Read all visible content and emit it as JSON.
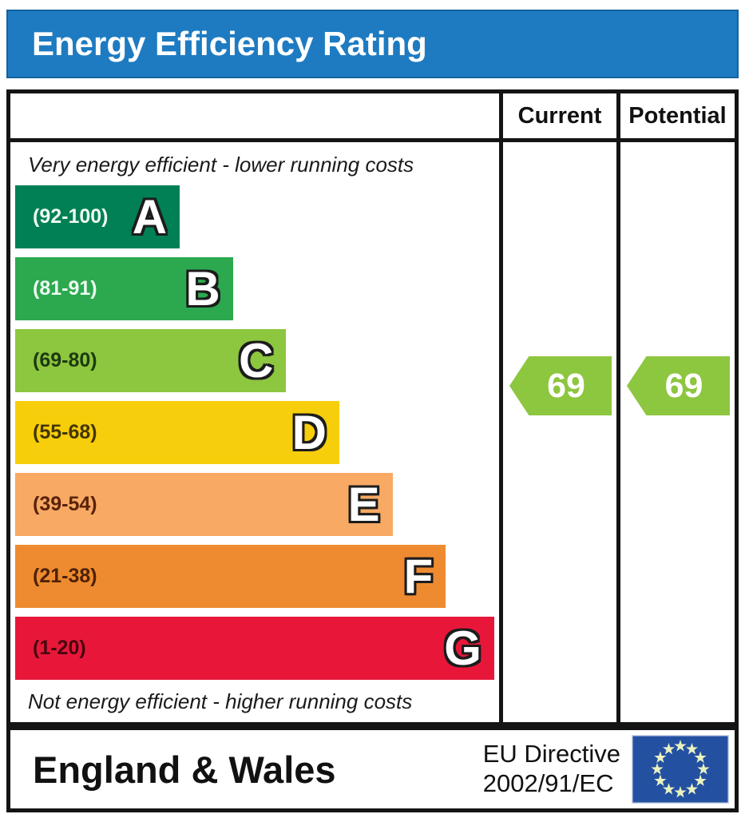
{
  "title": "Energy Efficiency Rating",
  "columns": {
    "current": "Current",
    "potential": "Potential"
  },
  "top_note": "Very energy efficient - lower running costs",
  "bottom_note": "Not energy efficient - higher running costs",
  "bands": [
    {
      "letter": "A",
      "range": "(92-100)",
      "color": "#008054",
      "label_color": "#eef9f1",
      "width_pct": 34
    },
    {
      "letter": "B",
      "range": "(81-91)",
      "color": "#2ca94f",
      "label_color": "#eef9f1",
      "width_pct": 45
    },
    {
      "letter": "C",
      "range": "(69-80)",
      "color": "#8dc63f",
      "label_color": "#1d3a10",
      "width_pct": 56
    },
    {
      "letter": "D",
      "range": "(55-68)",
      "color": "#f7ce0b",
      "label_color": "#433603",
      "width_pct": 67
    },
    {
      "letter": "E",
      "range": "(39-54)",
      "color": "#f8a963",
      "label_color": "#59230a",
      "width_pct": 78
    },
    {
      "letter": "F",
      "range": "(21-38)",
      "color": "#ee8b30",
      "label_color": "#4e2106",
      "width_pct": 89
    },
    {
      "letter": "G",
      "range": "(1-20)",
      "color": "#e8173a",
      "label_color": "#47060f",
      "width_pct": 99
    }
  ],
  "ratings": {
    "current": {
      "value": "69",
      "color": "#8dc63f"
    },
    "potential": {
      "value": "69",
      "color": "#8dc63f"
    }
  },
  "footer": {
    "region": "England & Wales",
    "directive_line1": "EU Directive",
    "directive_line2": "2002/91/EC"
  },
  "colors": {
    "title_bar": "#1e7bc1",
    "flag_blue": "#2450a2",
    "flag_star": "#e9f2c0",
    "border": "#141414"
  },
  "chart_data": {
    "type": "bar",
    "title": "Energy Efficiency Rating",
    "categories": [
      "A",
      "B",
      "C",
      "D",
      "E",
      "F",
      "G"
    ],
    "band_ranges": [
      "92-100",
      "81-91",
      "69-80",
      "55-68",
      "39-54",
      "21-38",
      "1-20"
    ],
    "band_colors": [
      "#008054",
      "#2ca94f",
      "#8dc63f",
      "#f7ce0b",
      "#f8a963",
      "#ee8b30",
      "#e8173a"
    ],
    "band_widths_pct": [
      34,
      45,
      56,
      67,
      78,
      89,
      99
    ],
    "series": [
      {
        "name": "Current",
        "values": [
          69
        ],
        "band": "C"
      },
      {
        "name": "Potential",
        "values": [
          69
        ],
        "band": "C"
      }
    ],
    "annotations": [
      "Very energy efficient - lower running costs",
      "Not energy efficient - higher running costs"
    ],
    "footer": "England & Wales — EU Directive 2002/91/EC",
    "legend_position": "top-right-columns",
    "grid": false
  }
}
